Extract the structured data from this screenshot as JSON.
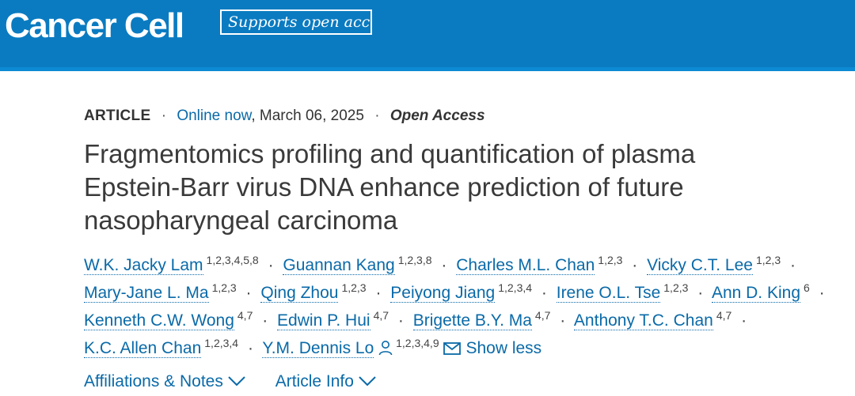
{
  "header": {
    "logo_text": "Cancer Cell",
    "badge_text": "Supports open access",
    "bg_color": "#0a7bc1"
  },
  "meta": {
    "article_type": "ARTICLE",
    "separator": "·",
    "online_now": "Online now",
    "date": ", March 06, 2025",
    "open_access": "Open Access"
  },
  "title": {
    "line1": "Fragmentomics profiling and quantification of plasma",
    "line2": "Epstein-Barr virus DNA enhance prediction of future",
    "line3": "nasopharyngeal carcinoma"
  },
  "authors": [
    {
      "name": "W.K. Jacky Lam",
      "aff": "1,2,3,4,5,8"
    },
    {
      "name": "Guannan Kang",
      "aff": "1,2,3,8"
    },
    {
      "name": "Charles M.L. Chan",
      "aff": "1,2,3"
    },
    {
      "name": "Vicky C.T. Lee",
      "aff": "1,2,3"
    },
    {
      "name": "Mary-Jane L. Ma",
      "aff": "1,2,3"
    },
    {
      "name": "Qing Zhou",
      "aff": "1,2,3"
    },
    {
      "name": "Peiyong Jiang",
      "aff": "1,2,3,4"
    },
    {
      "name": "Irene O.L. Tse",
      "aff": "1,2,3"
    },
    {
      "name": "Ann D. King",
      "aff": "6"
    },
    {
      "name": "Kenneth C.W. Wong",
      "aff": "4,7"
    },
    {
      "name": "Edwin P. Hui",
      "aff": "4,7"
    },
    {
      "name": "Brigette B.Y. Ma",
      "aff": "4,7"
    },
    {
      "name": "Anthony T.C. Chan",
      "aff": "4,7"
    },
    {
      "name": "K.C. Allen Chan",
      "aff": "1,2,3,4"
    },
    {
      "name": "Y.M. Dennis Lo",
      "aff": "1,2,3,4,9"
    }
  ],
  "author_separator": "·",
  "show_less": "Show less",
  "links": {
    "affiliations": "Affiliations & Notes",
    "article_info": "Article Info"
  },
  "icons": {
    "corresponding": "person-icon",
    "email": "envelope-icon",
    "dropdown": "chevron-down-icon"
  },
  "colors": {
    "link": "#0a6aa8",
    "text": "#333333"
  }
}
